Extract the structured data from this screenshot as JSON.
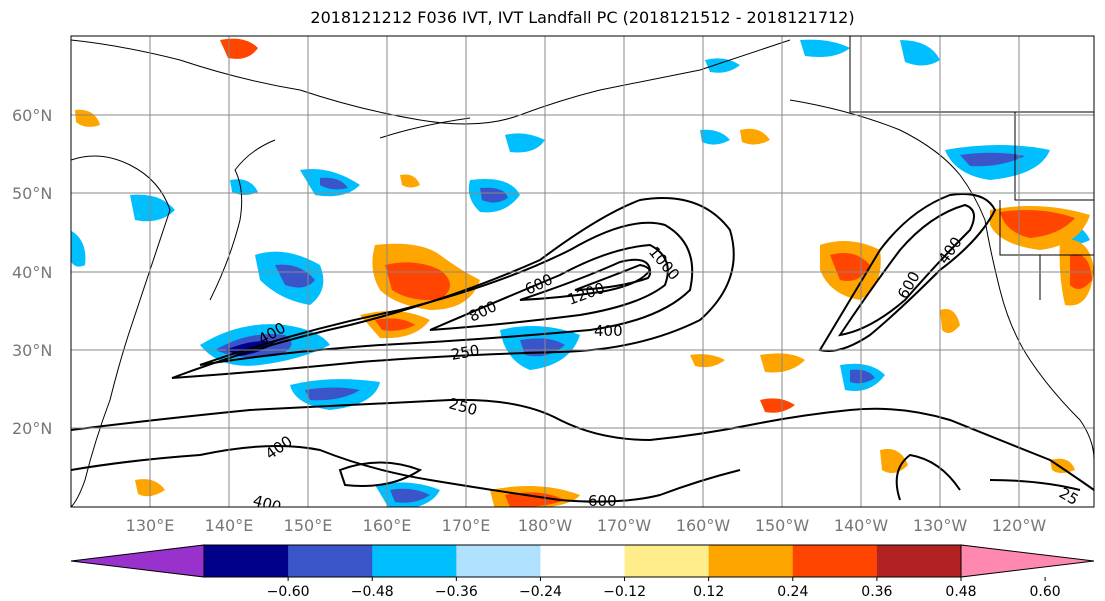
{
  "title": "2018121212 F036 IVT, IVT Landfall PC (2018121512 - 2018121712)",
  "lat_labels": [
    "60°N",
    "50°N",
    "40°N",
    "30°N",
    "20°N"
  ],
  "lon_labels": [
    "130°E",
    "140°E",
    "150°E",
    "160°E",
    "170°E",
    "180°W",
    "170°W",
    "160°W",
    "150°W",
    "140°W",
    "130°W",
    "120°W"
  ],
  "colorbar": {
    "colors": [
      "#9932cc",
      "#00008b",
      "#3a55c8",
      "#00bfff",
      "#b0e2ff",
      "#ffffff",
      "#ffec8b",
      "#ffa500",
      "#ff4500",
      "#b22222",
      "#ff88b0"
    ],
    "ticks": [
      "−0.60",
      "−0.48",
      "−0.36",
      "−0.24",
      "−0.12",
      "0.12",
      "0.24",
      "0.36",
      "0.48",
      "0.60"
    ]
  },
  "contour_labels": [
    "1000",
    "1200",
    "800",
    "600",
    "400",
    "250",
    "250",
    "400",
    "400",
    "600",
    "400",
    "600",
    "25"
  ],
  "colors": {
    "grid": "#888888",
    "contour": "#000000",
    "coast": "#000000"
  }
}
